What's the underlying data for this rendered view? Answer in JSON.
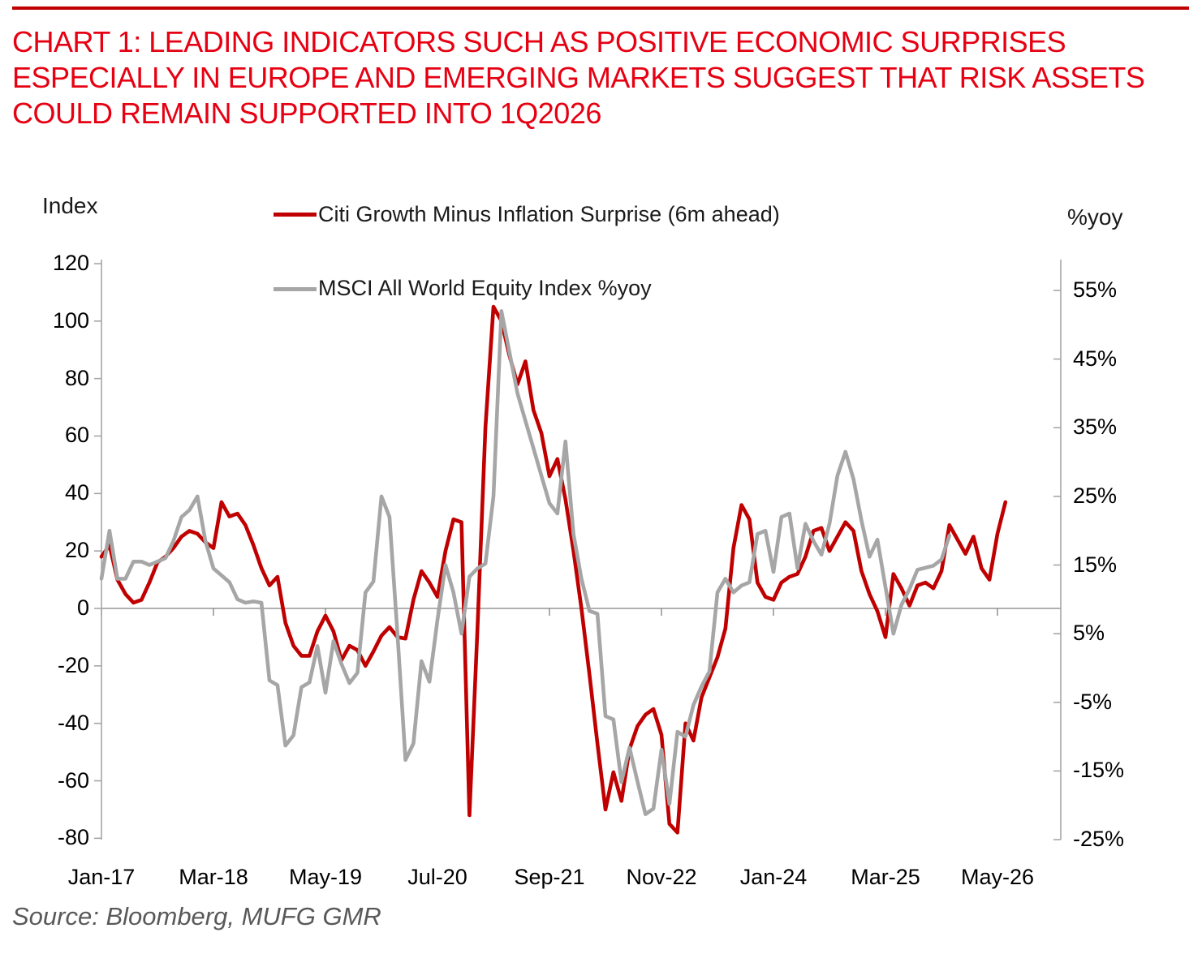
{
  "header": {
    "title": "CHART 1: LEADING INDICATORS SUCH AS POSITIVE ECONOMIC SURPRISES ESPECIALLY IN EUROPE AND EMERGING MARKETS SUGGEST THAT RISK ASSETS COULD REMAIN SUPPORTED INTO 1Q2026",
    "title_color": "#E60012",
    "rule_color": "#C00000"
  },
  "legend": {
    "items": [
      {
        "label": "Citi Growth Minus Inflation Surprise (6m ahead)",
        "color": "#C00000"
      },
      {
        "label": "MSCI All World Equity Index %yoy",
        "color": "#A6A6A6"
      }
    ]
  },
  "footer": {
    "source": "Source: Bloomberg, MUFG GMR"
  },
  "chart_data": {
    "type": "line",
    "title": "CHART 1: LEADING INDICATORS SUCH AS POSITIVE ECONOMIC SURPRISES ESPECIALLY IN EUROPE AND EMERGING MARKETS SUGGEST THAT RISK ASSETS COULD REMAIN SUPPORTED INTO 1Q2026",
    "x_frequency": "monthly",
    "x_start": "2017-01",
    "x_tick_labels": [
      "Jan-17",
      "Mar-18",
      "May-19",
      "Jul-20",
      "Sep-21",
      "Nov-22",
      "Jan-24",
      "Mar-25",
      "May-26"
    ],
    "x_tick_month_indices": [
      0,
      14,
      28,
      42,
      56,
      70,
      84,
      98,
      112
    ],
    "grid": "zero-line-only",
    "legend_position": "top",
    "left_axis": {
      "title": "Index",
      "min": -80,
      "max": 120,
      "ticks": [
        120,
        100,
        80,
        60,
        40,
        20,
        0,
        -20,
        -40,
        -60,
        -80
      ]
    },
    "right_axis": {
      "title": "%yoy",
      "min": -25,
      "max": 60,
      "tick_labels": [
        "55%",
        "45%",
        "35%",
        "25%",
        "15%",
        "5%",
        "-5%",
        "-15%",
        "-25%"
      ],
      "tick_values": [
        55,
        45,
        35,
        25,
        15,
        5,
        -5,
        -15,
        -25
      ]
    },
    "series": [
      {
        "name": "Citi Growth Minus Inflation Surprise (6m ahead)",
        "axis": "left",
        "color": "#C00000",
        "start": "2017-01",
        "end": "2026-06",
        "values": [
          18,
          22,
          10,
          5,
          2,
          3,
          9,
          16,
          18,
          21,
          25,
          27,
          26,
          23,
          21,
          37,
          32,
          33,
          29,
          22,
          14,
          8,
          11,
          -5,
          -13,
          -16.5,
          -16.5,
          -8,
          -2.5,
          -8,
          -18,
          -13,
          -14.5,
          -20,
          -15,
          -9.5,
          -6.5,
          -10,
          -10.5,
          3,
          13,
          9,
          4,
          20,
          31,
          30,
          -72,
          -7,
          63,
          105,
          100,
          88,
          78,
          86,
          69,
          61,
          46,
          52,
          38,
          20,
          0,
          -23,
          -47,
          -70,
          -57,
          -67,
          -49,
          -41,
          -37,
          -35,
          -44,
          -75,
          -78,
          -40,
          -46,
          -31,
          -24,
          -17,
          -7,
          21,
          36,
          31,
          9,
          4,
          3,
          9,
          11,
          12,
          18,
          27,
          28,
          20,
          25,
          30,
          27,
          13,
          5,
          -1,
          -10,
          12,
          7,
          1,
          8,
          9,
          7,
          13,
          29,
          24,
          19,
          25,
          14,
          10,
          26,
          37
        ]
      },
      {
        "name": "MSCI All World Equity Index %yoy",
        "axis": "right",
        "color": "#A6A6A6",
        "start": "2017-01",
        "end": "2025-11",
        "values": [
          13,
          20,
          13,
          13,
          15.5,
          15.5,
          15,
          15.5,
          16,
          18.5,
          22,
          23,
          25,
          18.5,
          14.5,
          13.5,
          12.5,
          10,
          9.5,
          9.7,
          9.5,
          -1.8,
          -2.5,
          -11.3,
          -9.8,
          -2.8,
          -2.1,
          3.2,
          -3.6,
          3.9,
          0.6,
          -2.2,
          -0.7,
          11,
          12.6,
          25,
          22,
          5,
          -13.4,
          -11,
          1,
          -2,
          7,
          15,
          11,
          5,
          13.3,
          14.5,
          15.2,
          25,
          52,
          46,
          40,
          36,
          32,
          28,
          24,
          22.5,
          33,
          19.5,
          13,
          8.3,
          7.9,
          -7,
          -7.5,
          -16.6,
          -11.6,
          -16.5,
          -21.3,
          -20.5,
          -11.9,
          -19.8,
          -9.3,
          -10,
          -5.4,
          -2.7,
          -0.5,
          11,
          13,
          11,
          12,
          12.5,
          19.5,
          20,
          14,
          22,
          22.5,
          14.5,
          21,
          18.5,
          16.5,
          21,
          28,
          31.5,
          27.5,
          21.5,
          16.2,
          18.7,
          11.8,
          5,
          9.2,
          11.5,
          14.3,
          14.6,
          14.9,
          15.8,
          19.3
        ]
      }
    ]
  }
}
